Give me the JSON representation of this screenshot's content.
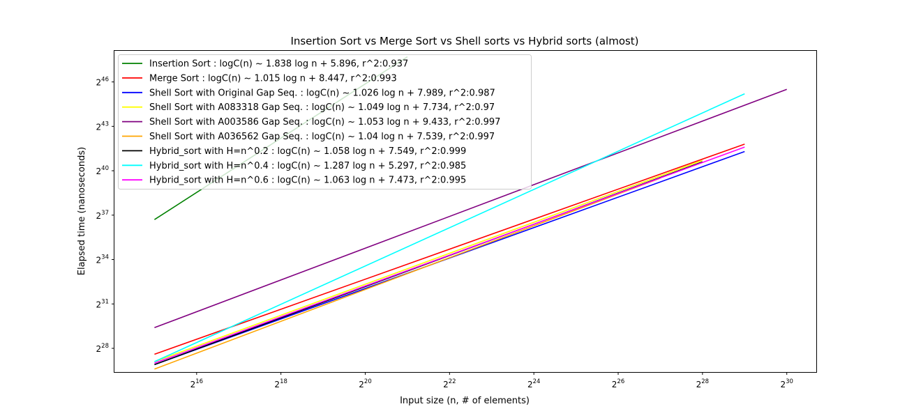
{
  "chart_data": {
    "type": "line",
    "title": "Insertion Sort vs Merge Sort vs Shell sorts vs Hybrid sorts (almost)",
    "xlabel": "Input size (n, # of elements)",
    "ylabel": "Elapsed time (nanoseconds)",
    "x_scale": "log2",
    "y_scale": "log2",
    "xlim_log2": [
      14.05,
      30.7
    ],
    "ylim_log2": [
      26.4,
      48.1
    ],
    "x_ticks_log2": [
      16,
      18,
      20,
      22,
      24,
      26,
      28,
      30
    ],
    "y_ticks_log2": [
      28,
      31,
      34,
      37,
      40,
      43,
      46
    ],
    "tick_base": "2",
    "grid": false,
    "legend_position": "upper-left",
    "series": [
      {
        "name": "Insertion Sort : logC(n) ~ 1.838 log n  + 5.896, r^2:0.937",
        "color": "#008000",
        "x_log2": [
          15,
          21
        ],
        "y_log2": [
          36.7,
          47.7
        ]
      },
      {
        "name": "Merge Sort : logC(n) ~ 1.015 log n  + 8.447, r^2:0.993",
        "color": "#ff0000",
        "x_log2": [
          15,
          29
        ],
        "y_log2": [
          27.6,
          41.8
        ]
      },
      {
        "name": "Shell Sort with Original Gap Seq. : logC(n) ~ 1.026 log n  + 7.989, r^2:0.987",
        "color": "#0000ff",
        "x_log2": [
          15,
          29
        ],
        "y_log2": [
          26.9,
          41.3
        ]
      },
      {
        "name": "Shell Sort with A083318 Gap Seq. : logC(n) ~ 1.049 log n  + 7.734, r^2:0.97",
        "color": "#ffff00",
        "x_log2": [
          15,
          28
        ],
        "y_log2": [
          27.1,
          40.7
        ]
      },
      {
        "name": "Shell Sort with A003586 Gap Seq. : logC(n) ~ 1.053 log n  + 9.433, r^2:0.997",
        "color": "#800080",
        "x_log2": [
          15,
          30
        ],
        "y_log2": [
          29.4,
          45.5
        ]
      },
      {
        "name": "Shell Sort with A036562 Gap Seq. : logC(n) ~ 1.04 log n  + 7.539, r^2:0.997",
        "color": "#ffa500",
        "x_log2": [
          15,
          27
        ],
        "y_log2": [
          26.6,
          39.5
        ]
      },
      {
        "name": "Hybrid_sort with H=n^0.2 : logC(n) ~ 1.058 log n  + 7.549, r^2:0.999",
        "color": "#000000",
        "x_log2": [
          15,
          28
        ],
        "y_log2": [
          26.9,
          40.6
        ]
      },
      {
        "name": "Hybrid_sort with H=n^0.4 : logC(n) ~ 1.287 log n  + 5.297, r^2:0.985",
        "color": "#00ffff",
        "x_log2": [
          15,
          29
        ],
        "y_log2": [
          27.1,
          45.2
        ]
      },
      {
        "name": "Hybrid_sort with H=n^0.6 : logC(n) ~ 1.063 log n  + 7.473, r^2:0.995",
        "color": "#ff00ff",
        "x_log2": [
          15,
          29
        ],
        "y_log2": [
          27.0,
          41.6
        ]
      }
    ]
  }
}
